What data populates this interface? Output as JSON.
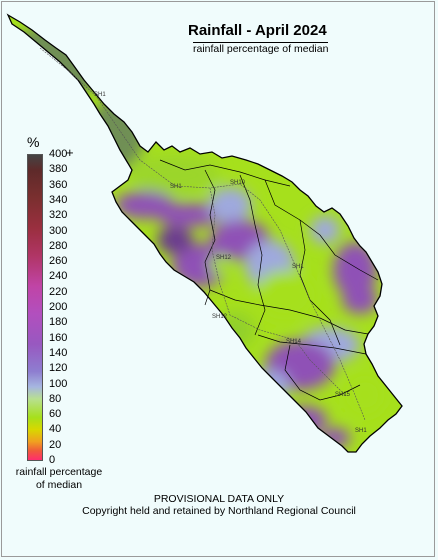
{
  "map": {
    "title": "Rainfall - April 2024",
    "subtitle": "rainfall percentage of median",
    "region_outline_color": "#000000",
    "colors": {
      "background": "#f0fcfc",
      "lime": "#a6e01c",
      "green": "#7ec82a",
      "light_blue": "#9fa9de",
      "purple": "#8f51b6",
      "dark_purple": "#6b3a8f",
      "grey_green": "#6f8f55"
    },
    "roads": [
      "SH1",
      "SH1",
      "SH10",
      "SH12",
      "SH1",
      "SH14",
      "SH15",
      "SH1",
      "SH12"
    ]
  },
  "legend": {
    "unit": "%",
    "plus": "+",
    "ticks": [
      "400",
      "380",
      "360",
      "340",
      "320",
      "300",
      "280",
      "260",
      "240",
      "220",
      "200",
      "180",
      "160",
      "140",
      "120",
      "100",
      "80",
      "60",
      "40",
      "20",
      "0"
    ],
    "caption_line1": "rainfall percentage",
    "caption_line2": "of median"
  },
  "footer": {
    "line1": "PROVISIONAL DATA ONLY",
    "line2": "Copyright held and retained by Northland Regional Council"
  }
}
